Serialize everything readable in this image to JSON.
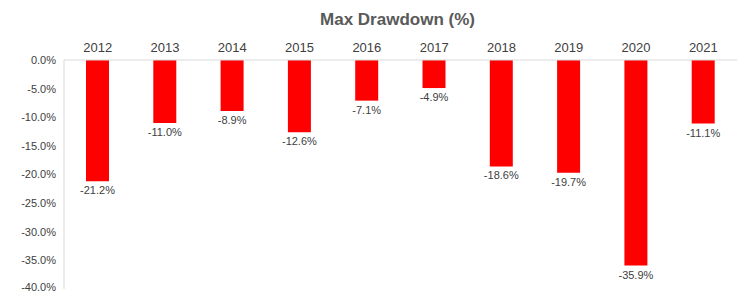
{
  "chart_data": {
    "type": "bar",
    "title": "Max Drawdown (%)",
    "categories": [
      "2012",
      "2013",
      "2014",
      "2015",
      "2016",
      "2017",
      "2018",
      "2019",
      "2020",
      "2021"
    ],
    "values": [
      -21.2,
      -11.0,
      -8.9,
      -12.6,
      -7.1,
      -4.9,
      -18.6,
      -19.7,
      -35.9,
      -11.1
    ],
    "value_labels": [
      "-21.2%",
      "-11.0%",
      "-8.9%",
      "-12.6%",
      "-7.1%",
      "-4.9%",
      "-18.6%",
      "-19.7%",
      "-35.9%",
      "-11.1%"
    ],
    "color": "#ff0000",
    "ylim": [
      -40,
      0
    ],
    "yticks": [
      {
        "value": 0,
        "label": "0.0%"
      },
      {
        "value": -5,
        "label": "-5.0%"
      },
      {
        "value": -10,
        "label": "-10.0%"
      },
      {
        "value": -15,
        "label": "-15.0%"
      },
      {
        "value": -20,
        "label": "-20.0%"
      },
      {
        "value": -25,
        "label": "-25.0%"
      },
      {
        "value": -30,
        "label": "-30.0%"
      },
      {
        "value": -35,
        "label": "-35.0%"
      },
      {
        "value": -40,
        "label": "-40.0%"
      }
    ],
    "grid": false,
    "data_labels": true
  }
}
